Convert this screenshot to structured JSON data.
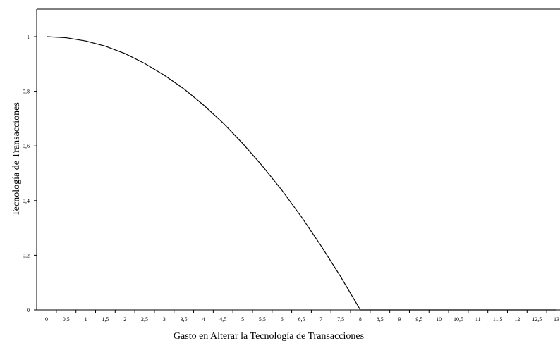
{
  "chart_data": {
    "type": "line",
    "title": "",
    "xlabel": "Gasto en Alterar la Tecnología de Transacciones",
    "ylabel": "Tecnología de Transacciones",
    "x_ticks": [
      "0",
      "0,5",
      "1",
      "1,5",
      "2",
      "2,5",
      "3",
      "3,5",
      "4",
      "4,5",
      "5",
      "5,5",
      "6",
      "6,5",
      "7",
      "7,5",
      "8",
      "8,5",
      "9",
      "9,5",
      "10",
      "10,5",
      "11",
      "11,5",
      "12",
      "12,5",
      "13"
    ],
    "y_ticks": [
      "0",
      "0,2",
      "0,4",
      "0,6",
      "0,8",
      "1"
    ],
    "xlim": [
      0,
      13
    ],
    "ylim": [
      0,
      1
    ],
    "grid": false,
    "legend": "none",
    "series": [
      {
        "x": [
          0,
          0.5,
          1,
          1.5,
          2,
          2.5,
          3,
          3.5,
          4,
          4.5,
          5,
          5.5,
          6,
          6.5,
          7,
          7.5,
          8,
          8.5,
          9,
          9.5,
          10,
          10.5,
          11,
          11.5,
          12,
          12.5,
          13
        ],
        "y": [
          1.0,
          0.996,
          0.984,
          0.965,
          0.938,
          0.902,
          0.859,
          0.809,
          0.75,
          0.684,
          0.609,
          0.527,
          0.438,
          0.34,
          0.234,
          0.121,
          0,
          0,
          0,
          0,
          0,
          0,
          0,
          0,
          0,
          0,
          0
        ]
      }
    ]
  }
}
